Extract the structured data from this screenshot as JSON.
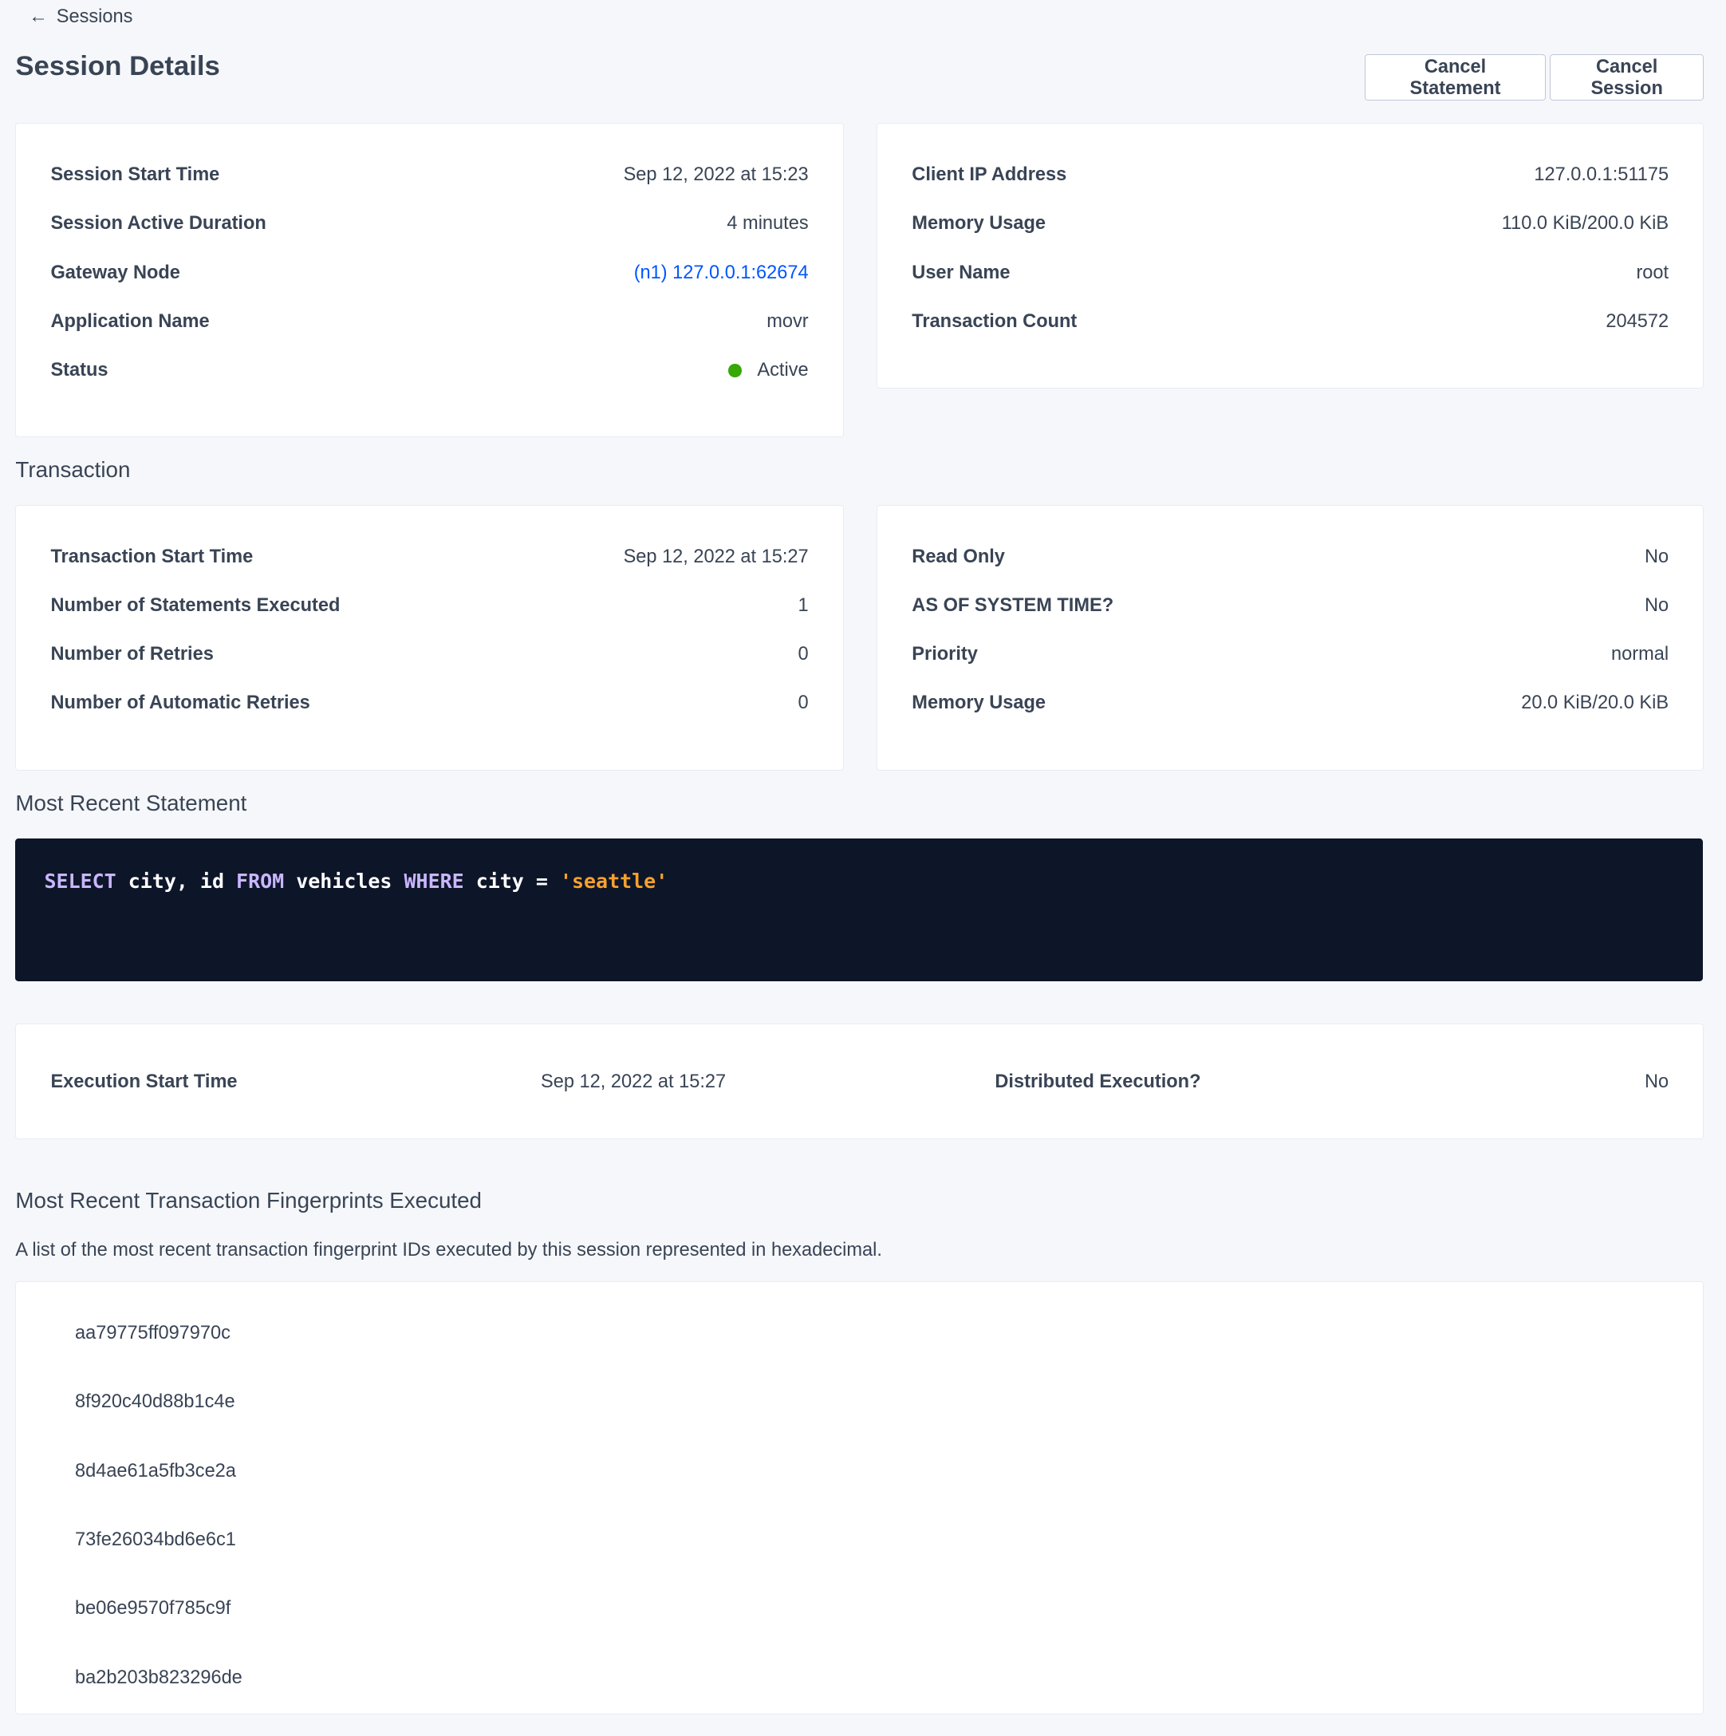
{
  "breadcrumb": {
    "label": "Sessions",
    "icon": "arrow-left-icon"
  },
  "title": "Session Details",
  "actions": {
    "cancel_statement": "Cancel Statement",
    "cancel_session": "Cancel Session"
  },
  "session": {
    "left": [
      {
        "label": "Session Start Time",
        "value": "Sep 12, 2022 at 15:23"
      },
      {
        "label": "Session Active Duration",
        "value": "4 minutes"
      },
      {
        "label": "Gateway Node",
        "value": "(n1) 127.0.0.1:62674"
      },
      {
        "label": "Application Name",
        "value": "movr"
      },
      {
        "label": "Status",
        "value": "Active"
      }
    ],
    "right": [
      {
        "label": "Client IP Address",
        "value": "127.0.0.1:51175"
      },
      {
        "label": "Memory Usage",
        "value": "110.0 KiB/200.0 KiB"
      },
      {
        "label": "User Name",
        "value": "root"
      },
      {
        "label": "Transaction Count",
        "value": "204572"
      }
    ]
  },
  "status_color": "#37a806",
  "transaction": {
    "heading": "Transaction",
    "left": [
      {
        "label": "Transaction Start Time",
        "value": "Sep 12, 2022 at 15:27"
      },
      {
        "label": "Number of Statements Executed",
        "value": "1"
      },
      {
        "label": "Number of Retries",
        "value": "0"
      },
      {
        "label": "Number of Automatic Retries",
        "value": "0"
      }
    ],
    "right": [
      {
        "label": "Read Only",
        "value": "No"
      },
      {
        "label": "AS OF SYSTEM TIME?",
        "value": "No"
      },
      {
        "label": "Priority",
        "value": "normal"
      },
      {
        "label": "Memory Usage",
        "value": "20.0 KiB/20.0 KiB"
      }
    ]
  },
  "statement": {
    "heading": "Most Recent Statement",
    "sql": {
      "t1": "SELECT",
      "t2": " city, id ",
      "t3": "FROM",
      "t4": " vehicles ",
      "t5": "WHERE",
      "t6": " city = ",
      "t7": "'seattle'"
    },
    "execution": [
      {
        "label": "Execution Start Time",
        "value": "Sep 12, 2022 at 15:27"
      },
      {
        "label": "Distributed Execution?",
        "value": "No"
      }
    ]
  },
  "fingerprints": {
    "heading": "Most Recent Transaction Fingerprints Executed",
    "description": "A list of the most recent transaction fingerprint IDs executed by this session represented in hexadecimal.",
    "items": [
      "aa79775ff097970c",
      "8f920c40d88b1c4e",
      "8d4ae61a5fb3ce2a",
      "73fe26034bd6e6c1",
      "be06e9570f785c9f",
      "ba2b203b823296de"
    ]
  }
}
